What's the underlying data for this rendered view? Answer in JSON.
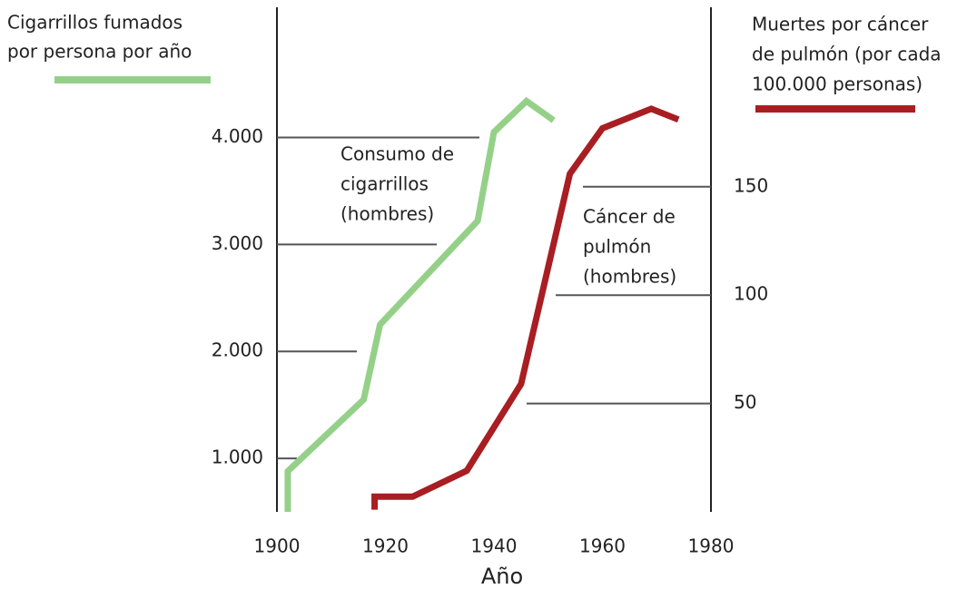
{
  "chart_data": {
    "type": "line",
    "ylabel": [
      "Cigarrillos fumados",
      "por persona por año"
    ],
    "y2label": [
      "Muertes por cáncer",
      "de pulmón (por cada",
      "100.000 personas)"
    ],
    "xlabel": "Año",
    "xlim": [
      1900,
      1980
    ],
    "xticks": [
      1900,
      1920,
      1940,
      1960,
      1980
    ],
    "ylim": [
      500,
      5200
    ],
    "yticks": [
      {
        "value": 1000,
        "label": "1.000"
      },
      {
        "value": 2000,
        "label": "2.000"
      },
      {
        "value": 3000,
        "label": "3.000"
      },
      {
        "value": 4000,
        "label": "4.000"
      }
    ],
    "y2lim": [
      0,
      232
    ],
    "y2ticks": [
      50,
      100,
      150
    ],
    "series": [
      {
        "name": [
          "Consumo de",
          "cigarrillos",
          "(hombres)"
        ],
        "color": "#95d089",
        "x": [
          1902,
          1902,
          1916,
          1919,
          1937,
          1940,
          1946,
          1951
        ],
        "values": [
          500,
          880,
          1550,
          2250,
          3220,
          4050,
          4340,
          4160
        ]
      },
      {
        "name": [
          "Cáncer de",
          "pulmón",
          "(hombres)"
        ],
        "color": "#a81e22",
        "axis": "y2",
        "x": [
          1918,
          1918,
          1925,
          1935,
          1945,
          1954,
          1960,
          1969,
          1974
        ],
        "values": [
          1,
          7,
          7,
          19,
          59,
          156,
          177,
          186,
          181
        ]
      }
    ]
  }
}
